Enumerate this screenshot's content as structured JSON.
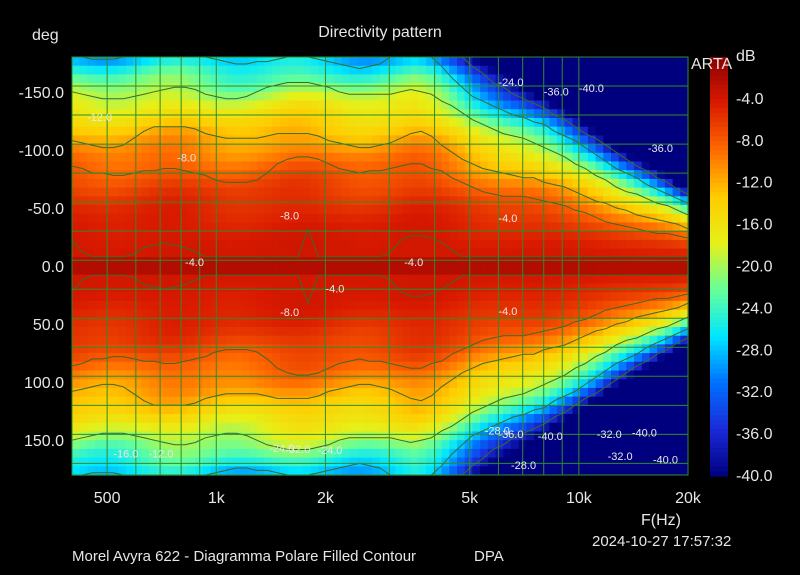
{
  "chart_data": {
    "type": "heatmap",
    "title": "Directivity pattern",
    "y_unit": "deg",
    "x_unit": "F(Hz)",
    "colorbar_unit": "dB",
    "brand": "ARTA",
    "x_scale": "log",
    "xlim": [
      400,
      20000
    ],
    "ylim": [
      -180,
      180
    ],
    "x_ticks": [
      {
        "value": 500,
        "label": "500"
      },
      {
        "value": 1000,
        "label": "1k"
      },
      {
        "value": 2000,
        "label": "2k"
      },
      {
        "value": 5000,
        "label": "5k"
      },
      {
        "value": 10000,
        "label": "10k"
      },
      {
        "value": 20000,
        "label": "20k"
      }
    ],
    "y_ticks": [
      {
        "value": -150,
        "label": "-150.0"
      },
      {
        "value": -100,
        "label": "-100.0"
      },
      {
        "value": -50,
        "label": "-50.0"
      },
      {
        "value": 0,
        "label": "0.0"
      },
      {
        "value": 50,
        "label": "50.0"
      },
      {
        "value": 100,
        "label": "100.0"
      },
      {
        "value": 150,
        "label": "150.0"
      }
    ],
    "colorbar_ticks": [
      "-4.0",
      "-8.0",
      "-12.0",
      "-16.0",
      "-20.0",
      "-24.0",
      "-28.0",
      "-32.0",
      "-36.0",
      "-40.0"
    ],
    "color_range": [
      0,
      -40
    ],
    "colors": [
      "#8b0000",
      "#d91a00",
      "#ff6a00",
      "#ffcc00",
      "#e6f018",
      "#66ff99",
      "#00e6ff",
      "#0070ff",
      "#1a2ad8",
      "#00007f"
    ],
    "grid": true,
    "contour_labels": [
      {
        "f": 820,
        "a": 0,
        "text": "-4.0"
      },
      {
        "f": 1500,
        "a": -40,
        "text": "-8.0"
      },
      {
        "f": 2000,
        "a": 23,
        "text": "-4.0"
      },
      {
        "f": 3300,
        "a": 0,
        "text": "-4.0"
      },
      {
        "f": 6000,
        "a": -38,
        "text": "-4.0"
      },
      {
        "f": 6000,
        "a": 42,
        "text": "-4.0"
      },
      {
        "f": 1500,
        "a": 43,
        "text": "-8.0"
      },
      {
        "f": 780,
        "a": -90,
        "text": "-8.0"
      },
      {
        "f": 440,
        "a": -125,
        "text": "-12.0"
      },
      {
        "f": 10000,
        "a": -150,
        "text": "-40.0"
      },
      {
        "f": 8000,
        "a": -147,
        "text": "-36.0"
      },
      {
        "f": 6000,
        "a": -155,
        "text": "-24.0"
      },
      {
        "f": 15500,
        "a": -98,
        "text": "-36.0"
      },
      {
        "f": 6000,
        "a": 148,
        "text": "-36.0"
      },
      {
        "f": 7700,
        "a": 150,
        "text": "-40.0"
      },
      {
        "f": 11200,
        "a": 148,
        "text": "-32.0"
      },
      {
        "f": 14000,
        "a": 147,
        "text": "-40.0"
      },
      {
        "f": 12000,
        "a": 167,
        "text": "-32.0"
      },
      {
        "f": 16000,
        "a": 170,
        "text": "-40.0"
      },
      {
        "f": 5500,
        "a": 145,
        "text": "-28.0"
      },
      {
        "f": 6500,
        "a": 175,
        "text": "-28.0"
      },
      {
        "f": 1400,
        "a": 160,
        "text": "-24.0"
      },
      {
        "f": 1550,
        "a": 161,
        "text": "-32.0"
      },
      {
        "f": 1900,
        "a": 162,
        "text": "-24.0"
      },
      {
        "f": 520,
        "a": 165,
        "text": "-16.0"
      },
      {
        "f": 650,
        "a": 165,
        "text": "-12.0"
      }
    ]
  },
  "footer": {
    "description": "Morel Avyra 622 - Diagramma Polare Filled Contour",
    "mode": "DPA",
    "timestamp": "2024-10-27   17:57:32"
  }
}
